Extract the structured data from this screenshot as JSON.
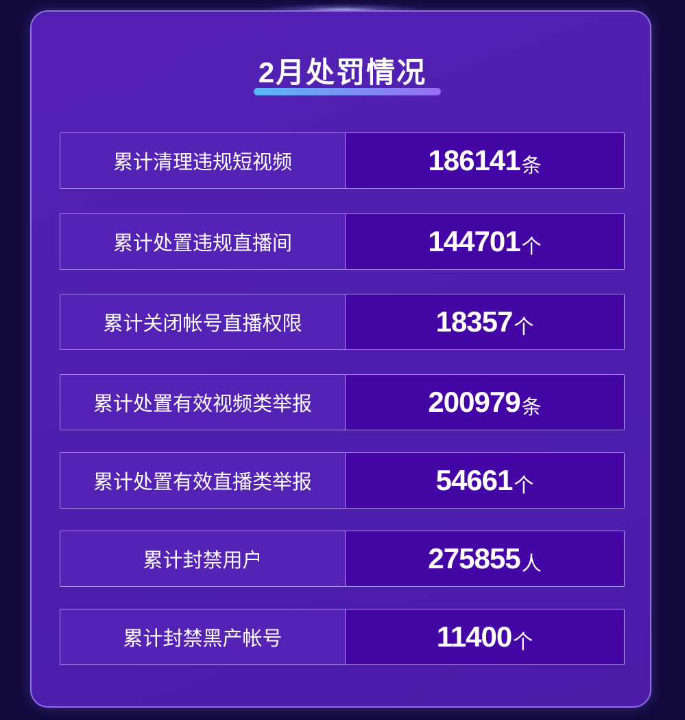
{
  "title": "2月处罚情况",
  "colors": {
    "background": "#120a3c",
    "card": "#5020b0",
    "value_cell": "#4407a6",
    "border": "#a78ef0",
    "underline_start": "#5ab8f8",
    "underline_end": "#9a6cf4"
  },
  "rows": [
    {
      "label": "累计清理违规短视频",
      "value": "186141",
      "unit": "条"
    },
    {
      "label": "累计处置违规直播间",
      "value": "144701",
      "unit": "个"
    },
    {
      "label": "累计关闭帐号直播权限",
      "value": "18357",
      "unit": "个"
    },
    {
      "label": "累计处置有效视频类举报",
      "value": "200979",
      "unit": "条"
    },
    {
      "label": "累计处置有效直播类举报",
      "value": "54661",
      "unit": "个"
    },
    {
      "label": "累计封禁用户",
      "value": "275855",
      "unit": "人"
    },
    {
      "label": "累计封禁黑产帐号",
      "value": "11400",
      "unit": "个"
    }
  ]
}
